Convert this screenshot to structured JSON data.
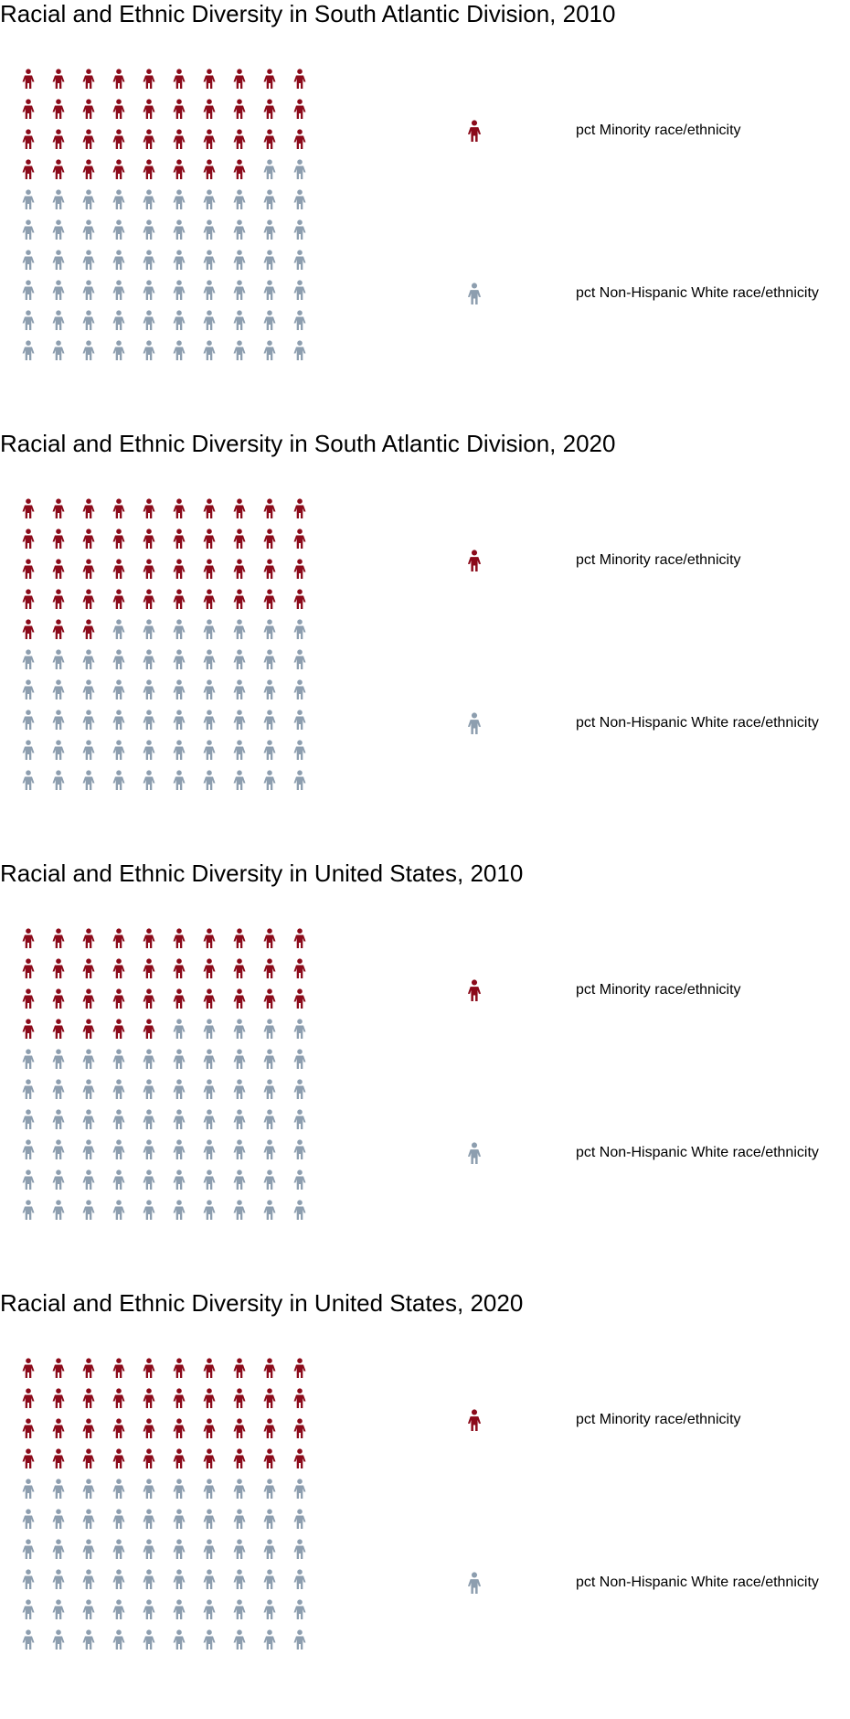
{
  "colors": {
    "minority": "#8b0a1a",
    "white": "#8d9eaf",
    "icon": "person-icon"
  },
  "chart_data": [
    {
      "type": "pictogram",
      "title": "Racial and Ethnic Diversity in South Atlantic Division, 2010",
      "grid": [
        10,
        10
      ],
      "series": [
        {
          "name": "pct Minority race/ethnicity",
          "value": 38
        },
        {
          "name": "pct Non-Hispanic White race/ethnicity",
          "value": 62
        }
      ],
      "legend_position": "right"
    },
    {
      "type": "pictogram",
      "title": "Racial and Ethnic Diversity in South Atlantic Division, 2020",
      "grid": [
        10,
        10
      ],
      "series": [
        {
          "name": "pct Minority race/ethnicity",
          "value": 43
        },
        {
          "name": "pct Non-Hispanic White race/ethnicity",
          "value": 57
        }
      ],
      "legend_position": "right"
    },
    {
      "type": "pictogram",
      "title": "Racial and Ethnic Diversity in United States, 2010",
      "grid": [
        10,
        10
      ],
      "series": [
        {
          "name": "pct Minority race/ethnicity",
          "value": 35
        },
        {
          "name": "pct Non-Hispanic White race/ethnicity",
          "value": 65
        }
      ],
      "legend_position": "right"
    },
    {
      "type": "pictogram",
      "title": "Racial and Ethnic Diversity in United States, 2020",
      "grid": [
        10,
        10
      ],
      "series": [
        {
          "name": "pct Minority race/ethnicity",
          "value": 40
        },
        {
          "name": "pct Non-Hispanic White race/ethnicity",
          "value": 60
        }
      ],
      "legend_position": "right"
    }
  ]
}
